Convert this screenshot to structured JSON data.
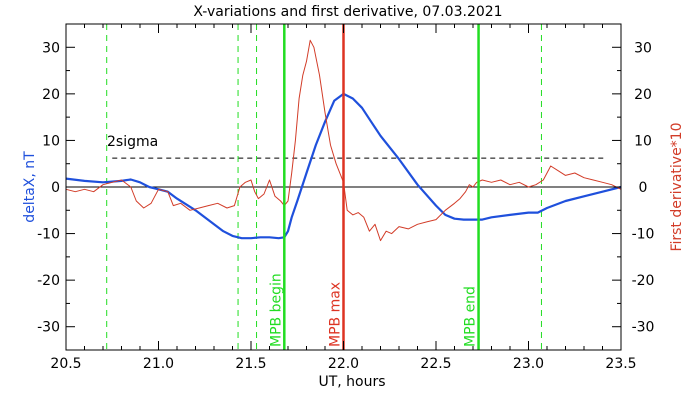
{
  "chart_data": {
    "type": "line",
    "title": "X-variations and first derivative, 07.03.2021",
    "xlabel": "UT, hours",
    "ylabel_left": "deltaX, nT",
    "ylabel_right": "First derivative*10",
    "xlim": [
      20.5,
      23.5
    ],
    "ylim": [
      -35,
      35
    ],
    "x_ticks": [
      "20.5",
      "21.0",
      "21.5",
      "22.0",
      "22.5",
      "23.0",
      "23.5"
    ],
    "y_ticks": [
      "30",
      "20",
      "10",
      "0",
      "-10",
      "-20",
      "-30"
    ],
    "colors": {
      "deltaX": "#1f50dc",
      "derivative": "#d23c28",
      "mpb_green": "#22dd22",
      "mpb_max": "#dd3322",
      "sigma": "#000000",
      "zero": "#000000"
    },
    "sigma": {
      "label": "2sigma",
      "value": 6.2
    },
    "markers": [
      {
        "x": 21.68,
        "label": "MPB begin",
        "kind": "green"
      },
      {
        "x": 22.0,
        "label": "MPB max",
        "kind": "red"
      },
      {
        "x": 22.73,
        "label": "MPB end",
        "kind": "green"
      }
    ],
    "dashed_verticals": [
      20.72,
      21.43,
      21.53,
      23.07
    ],
    "series": [
      {
        "name": "deltaX, nT",
        "axis": "left",
        "x": [
          20.5,
          20.6,
          20.7,
          20.8,
          20.85,
          20.9,
          20.95,
          21.0,
          21.05,
          21.1,
          21.2,
          21.3,
          21.35,
          21.4,
          21.45,
          21.5,
          21.55,
          21.6,
          21.65,
          21.68,
          21.7,
          21.72,
          21.75,
          21.8,
          21.85,
          21.9,
          21.95,
          22.0,
          22.05,
          22.1,
          22.15,
          22.2,
          22.3,
          22.4,
          22.5,
          22.55,
          22.6,
          22.65,
          22.7,
          22.75,
          22.8,
          22.9,
          23.0,
          23.05,
          23.1,
          23.2,
          23.3,
          23.4,
          23.5
        ],
        "y": [
          1.8,
          1.3,
          1.0,
          1.3,
          1.6,
          1.0,
          0.0,
          -0.5,
          -1.0,
          -2.5,
          -5.0,
          -8.0,
          -9.5,
          -10.5,
          -11.0,
          -11.0,
          -10.8,
          -10.8,
          -11.0,
          -10.8,
          -9.5,
          -6.5,
          -3.0,
          3.0,
          9.0,
          14.0,
          18.5,
          20.0,
          19.0,
          17.0,
          14.0,
          11.0,
          6.0,
          0.5,
          -4.0,
          -6.0,
          -6.8,
          -7.0,
          -7.0,
          -7.0,
          -6.5,
          -6.0,
          -5.5,
          -5.5,
          -4.5,
          -3.0,
          -2.0,
          -1.0,
          0.0
        ]
      },
      {
        "name": "First derivative*10",
        "axis": "right",
        "x": [
          20.5,
          20.55,
          20.6,
          20.65,
          20.7,
          20.75,
          20.8,
          20.85,
          20.88,
          20.92,
          20.96,
          21.0,
          21.05,
          21.08,
          21.12,
          21.17,
          21.22,
          21.27,
          21.32,
          21.37,
          21.41,
          21.44,
          21.47,
          21.5,
          21.52,
          21.54,
          21.57,
          21.6,
          21.63,
          21.66,
          21.68,
          21.7,
          21.72,
          21.74,
          21.76,
          21.78,
          21.8,
          21.82,
          21.84,
          21.87,
          21.9,
          21.93,
          21.96,
          22.0,
          22.02,
          22.05,
          22.08,
          22.11,
          22.14,
          22.17,
          22.2,
          22.23,
          22.26,
          22.3,
          22.35,
          22.4,
          22.45,
          22.5,
          22.55,
          22.6,
          22.63,
          22.66,
          22.68,
          22.7,
          22.72,
          22.75,
          22.8,
          22.85,
          22.9,
          22.95,
          23.0,
          23.04,
          23.08,
          23.12,
          23.16,
          23.2,
          23.25,
          23.3,
          23.35,
          23.4,
          23.45,
          23.5
        ],
        "y": [
          -0.5,
          -1.0,
          -0.5,
          -1.0,
          0.5,
          1.0,
          1.5,
          0.0,
          -3.0,
          -4.5,
          -3.5,
          -0.5,
          -1.0,
          -4.0,
          -3.5,
          -5.0,
          -4.5,
          -4.0,
          -3.5,
          -4.5,
          -4.0,
          0.0,
          1.0,
          1.5,
          -1.0,
          -2.5,
          -1.5,
          1.5,
          -2.0,
          -3.0,
          -4.0,
          -3.0,
          3.0,
          10.0,
          19.0,
          24.0,
          27.0,
          31.5,
          30.0,
          24.0,
          16.0,
          9.0,
          5.0,
          1.0,
          -5.0,
          -6.0,
          -5.5,
          -6.5,
          -9.5,
          -8.0,
          -11.5,
          -9.5,
          -10.0,
          -8.5,
          -9.0,
          -8.0,
          -7.5,
          -7.0,
          -5.0,
          -3.5,
          -2.5,
          -1.0,
          0.5,
          0.0,
          1.0,
          1.5,
          1.0,
          1.5,
          0.5,
          1.0,
          0.0,
          0.5,
          1.5,
          4.5,
          3.5,
          2.5,
          3.0,
          2.0,
          1.5,
          1.0,
          0.5,
          -0.5
        ]
      }
    ]
  }
}
